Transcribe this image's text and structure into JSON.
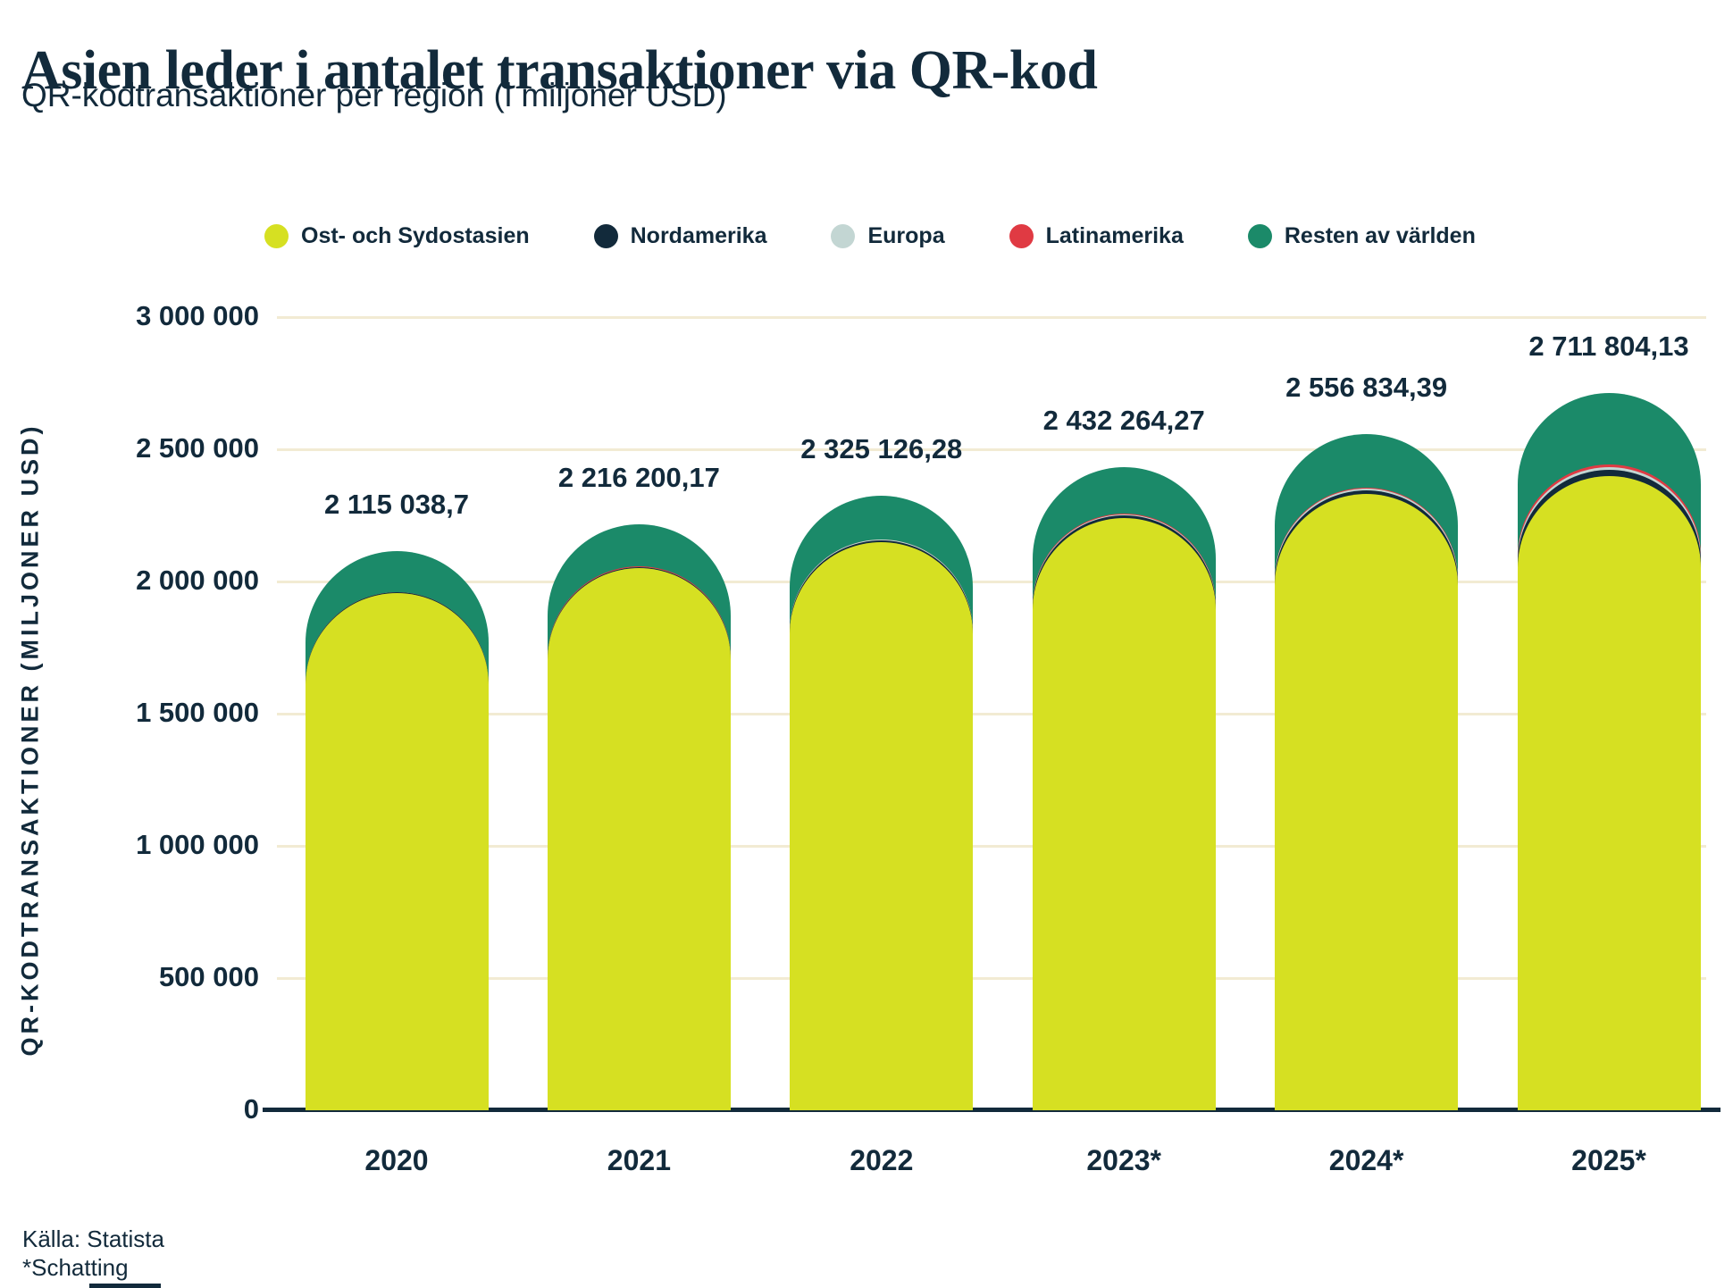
{
  "title": "Asien leder i antalet transaktioner via QR-kod",
  "subtitle": "QR-kodtransaktioner per region (i miljoner USD)",
  "source": "Källa: Statista",
  "footnote": "*Schatting",
  "colors": {
    "text_navy": "#122a3b",
    "background": "#ffffff",
    "gridline": "#f2ebd3",
    "axis": "#122a3b"
  },
  "chart_data": {
    "type": "bar",
    "stacked": true,
    "rounded_tops": true,
    "title": "Asien leder i antalet transaktioner via QR-kod",
    "subtitle": "QR-kodtransaktioner per region (i miljoner USD)",
    "xlabel": "",
    "ylabel": "QR-KODTRANSAKTIONER (MILJONER USD)",
    "categories": [
      "2020",
      "2021",
      "2022",
      "2023*",
      "2024*",
      "2025*"
    ],
    "series": [
      {
        "name": "Ost- och Sydostasien",
        "color": "#d6e022",
        "values": [
          1957000,
          2052000,
          2150000,
          2240000,
          2330000,
          2400000
        ]
      },
      {
        "name": "Nordamerika",
        "color": "#122a3b",
        "values": [
          1300,
          2200,
          5000,
          9000,
          13000,
          22000
        ]
      },
      {
        "name": "Europa",
        "color": "#c3d6d3",
        "values": [
          900,
          1300,
          2800,
          4800,
          9000,
          12000
        ]
      },
      {
        "name": "Latinamerika",
        "color": "#e03a43",
        "values": [
          838.7,
          700.17,
          1326.28,
          2464.27,
          2634.39,
          7804.13
        ]
      },
      {
        "name": "Resten av världen",
        "color": "#1b8a69",
        "values": [
          155000,
          160000,
          166000,
          176000,
          202200,
          270000
        ]
      }
    ],
    "series_values_estimated": true,
    "totals": [
      2115038.7,
      2216200.17,
      2325126.28,
      2432264.27,
      2556834.39,
      2711804.13
    ],
    "total_labels": [
      "2 115 038,7",
      "2 216 200,17",
      "2 325 126,28",
      "2 432 264,27",
      "2 556 834,39",
      "2 711 804,13"
    ],
    "ylim": [
      0,
      3000000
    ],
    "yticks": [
      0,
      500000,
      1000000,
      1500000,
      2000000,
      2500000,
      3000000
    ],
    "ytick_labels": [
      "0",
      "500 000",
      "1 000 000",
      "1 500 000",
      "2 000 000",
      "2 500 000",
      "3 000 000"
    ],
    "grid": true,
    "legend_position": "top"
  }
}
